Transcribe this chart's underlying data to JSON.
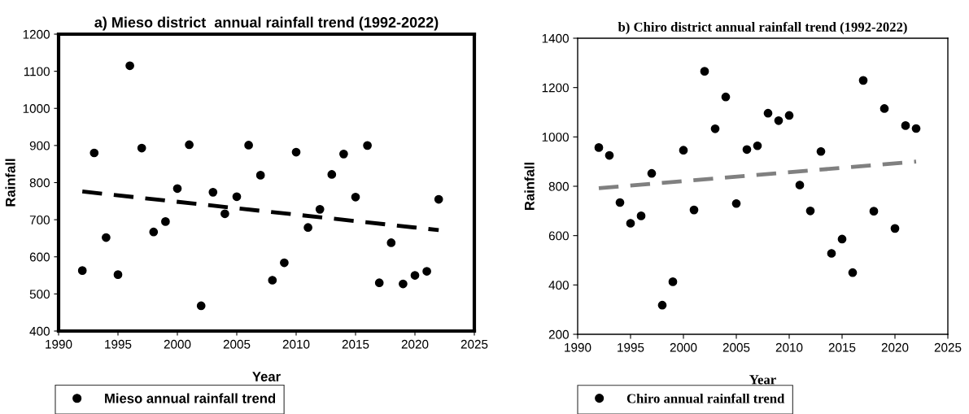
{
  "chart_data": [
    {
      "type": "scatter",
      "title": "a) Mieso district  annual rainfall trend (1992-2022)",
      "xlabel": "Year",
      "ylabel": "Rainfall",
      "xlim": [
        1990,
        2025
      ],
      "xticks": [
        1990,
        1995,
        2000,
        2005,
        2010,
        2015,
        2020,
        2025
      ],
      "ylim": [
        400,
        1200
      ],
      "yticks": [
        400,
        500,
        600,
        700,
        800,
        900,
        1000,
        1100,
        1200
      ],
      "grid": false,
      "legend": "bottom",
      "marker": "circle",
      "series": [
        {
          "name": "Mieso annual rainfall trend",
          "color": "#000000",
          "x": [
            1992,
            1993,
            1994,
            1995,
            1996,
            1997,
            1998,
            1999,
            2000,
            2001,
            2002,
            2003,
            2004,
            2005,
            2006,
            2007,
            2008,
            2009,
            2010,
            2011,
            2012,
            2013,
            2014,
            2015,
            2016,
            2017,
            2018,
            2019,
            2020,
            2021,
            2022
          ],
          "values": [
            563,
            880,
            652,
            552,
            1115,
            893,
            667,
            695,
            784,
            902,
            468,
            774,
            716,
            762,
            901,
            820,
            537,
            584,
            882,
            679,
            728,
            822,
            877,
            761,
            900,
            530,
            638,
            527,
            550,
            561,
            755
          ]
        },
        {
          "type": "line",
          "color": "#000000",
          "line_style": "dashed",
          "marker": "none",
          "x": [
            1992,
            2022
          ],
          "values": [
            776,
            672
          ]
        }
      ]
    },
    {
      "type": "scatter",
      "title": "b) Chiro district annual rainfall trend (1992-2022)",
      "xlabel": "Year",
      "ylabel": "Rainfall",
      "xlim": [
        1990,
        2025
      ],
      "xticks": [
        1990,
        1995,
        2000,
        2005,
        2010,
        2015,
        2020,
        2025
      ],
      "ylim": [
        200,
        1400
      ],
      "yticks": [
        200,
        400,
        600,
        800,
        1000,
        1200,
        1400
      ],
      "grid": false,
      "legend": "bottom",
      "marker": "circle",
      "series": [
        {
          "name": "Chiro annual rainfall trend",
          "color": "#000000",
          "x": [
            1992,
            1993,
            1994,
            1995,
            1996,
            1997,
            1998,
            1999,
            2000,
            2001,
            2002,
            2003,
            2004,
            2005,
            2006,
            2007,
            2008,
            2009,
            2010,
            2011,
            2012,
            2013,
            2014,
            2015,
            2016,
            2017,
            2018,
            2019,
            2020,
            2021,
            2022
          ],
          "values": [
            957,
            925,
            734,
            650,
            680,
            852,
            318,
            413,
            946,
            704,
            1266,
            1033,
            1162,
            730,
            949,
            964,
            1096,
            1066,
            1087,
            805,
            700,
            941,
            528,
            586,
            450,
            1229,
            699,
            1115,
            629,
            1046,
            1034
          ]
        },
        {
          "type": "line",
          "color": "#808080",
          "line_style": "dashed",
          "marker": "none",
          "x": [
            1992,
            2022
          ],
          "values": [
            792,
            900
          ]
        }
      ]
    }
  ]
}
